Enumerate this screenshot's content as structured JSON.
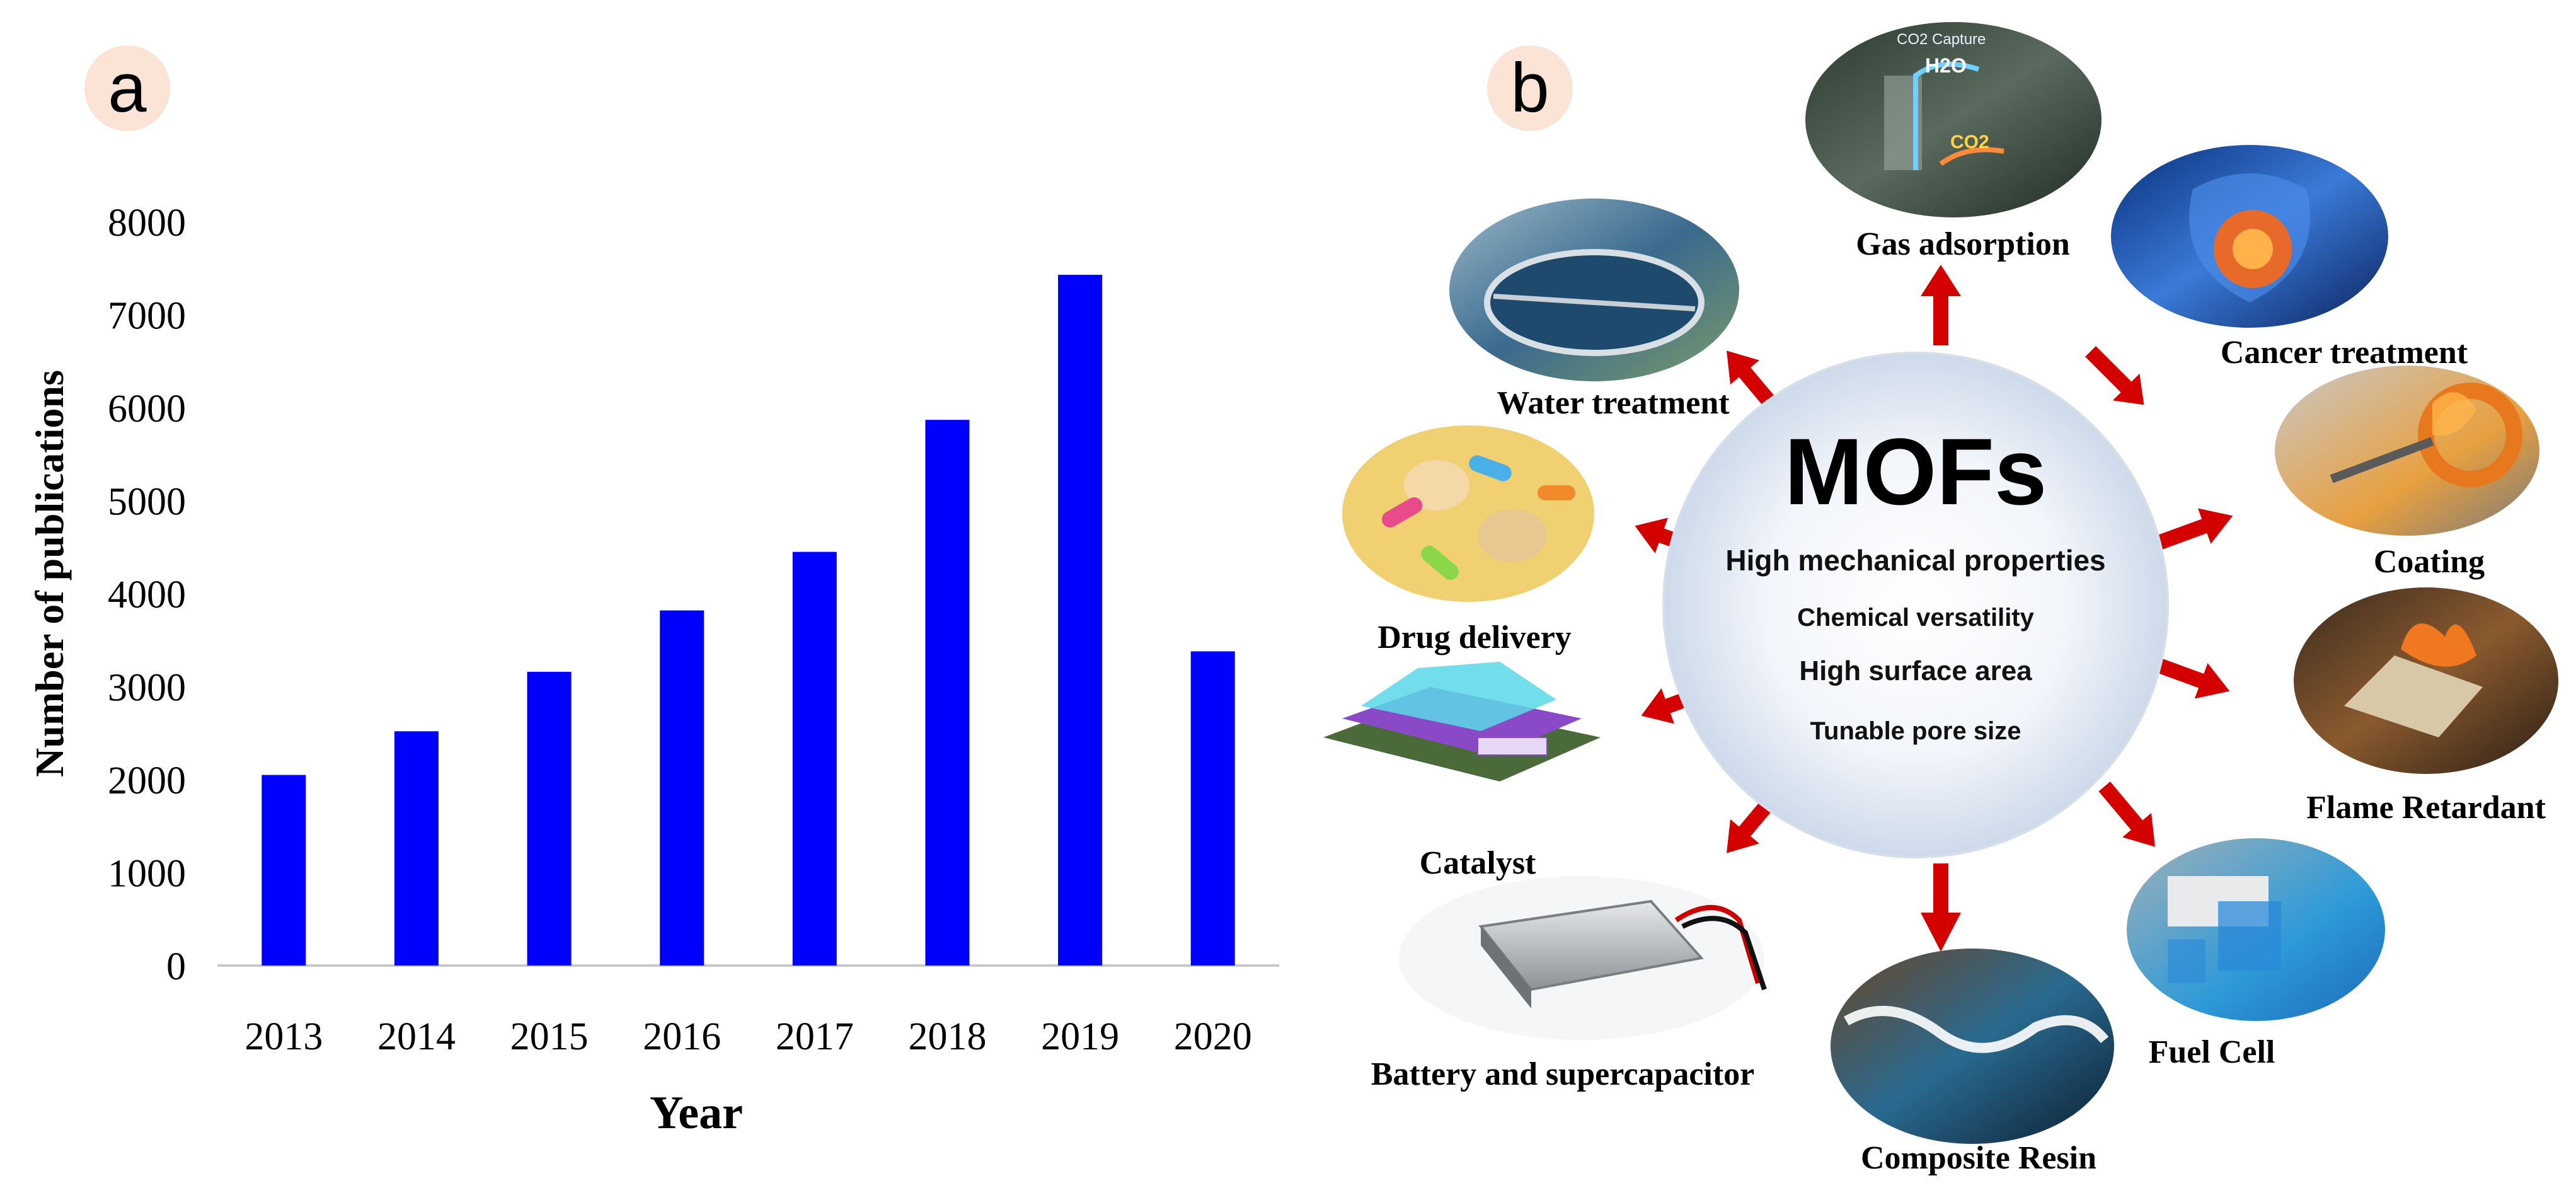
{
  "panels": {
    "a": "a",
    "b": "b"
  },
  "chart_data": {
    "type": "bar",
    "categories": [
      "2013",
      "2014",
      "2015",
      "2016",
      "2017",
      "2018",
      "2019",
      "2020"
    ],
    "values": [
      2050,
      2520,
      3160,
      3820,
      4450,
      5870,
      7430,
      3380
    ],
    "title": "",
    "xlabel": "Year",
    "ylabel": "Number of publications",
    "ylim": [
      0,
      8000
    ],
    "yticks": [
      0,
      1000,
      2000,
      3000,
      4000,
      5000,
      6000,
      7000,
      8000
    ],
    "grid": false,
    "bar_color": "#0000ff"
  },
  "diagram": {
    "center_title": "MOFs",
    "properties": [
      "High mechanical properties",
      "Chemical versatility",
      "High surface area",
      "Tunable pore size"
    ],
    "arrow_color": "#d40000",
    "applications": {
      "gas": "Gas adsorption",
      "cancer": "Cancer treatment",
      "coating": "Coating",
      "flame": "Flame Retardant",
      "fuel": "Fuel Cell",
      "resin": "Composite Resin",
      "battery": "Battery and supercapacitor",
      "catalyst": "Catalyst",
      "drug": "Drug delivery",
      "water": "Water treatment"
    },
    "photo_labels": {
      "gas_h2o": "H2O",
      "gas_co2": "CO2",
      "gas_caption": "CO2 Capture"
    }
  }
}
